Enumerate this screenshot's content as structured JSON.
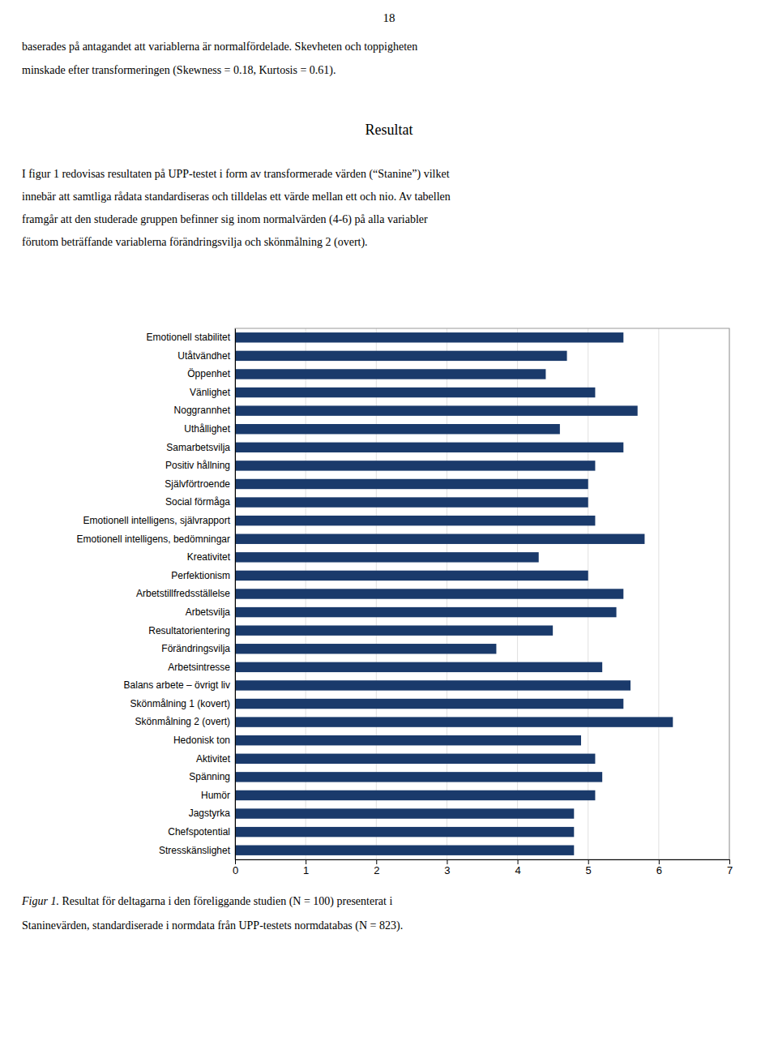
{
  "page_number": "18",
  "top_text": [
    "baserades på antagandet att variablerna är normalfördelade. Skevheten och toppigheten",
    "minskade efter transformeringen (Skewness = 0.18, Kurtosis = 0.61)."
  ],
  "section_heading": "Resultat",
  "body_text": [
    "I figur 1 redovisas resultaten på UPP-testet i form av transformerade värden (“Stanine”) vilket",
    "innebär att samtliga rådata standardiseras och tilldelas ett värde mellan ett och nio. Av tabellen",
    "framgår att den studerade gruppen befinner sig inom normalvärden (4-6) på alla variabler",
    "förutom beträffande variablerna förändringsvilja och skönmålning 2 (overt)."
  ],
  "caption": {
    "italic": "Figur 1.",
    "normal": " Resultat för deltagarna i den föreliggande studien (N = 100) presenterat i",
    "line2": "Staninevärden, standardiserade i normdata från UPP-testets normdatabas (N = 823)."
  },
  "chart_data": {
    "type": "bar",
    "orientation": "horizontal",
    "categories": [
      "Emotionell stabilitet",
      "Utåtvändhet",
      "Öppenhet",
      "Vänlighet",
      "Noggrannhet",
      "Uthållighet",
      "Samarbetsvilja",
      "Positiv hållning",
      "Självförtroende",
      "Social förmåga",
      "Emotionell intelligens, självrapport",
      "Emotionell intelligens, bedömningar",
      "Kreativitet",
      "Perfektionism",
      "Arbetstillfredsställelse",
      "Arbetsvilja",
      "Resultatorientering",
      "Förändringsvilja",
      "Arbetsintresse",
      "Balans arbete – övrigt liv",
      "Skönmålning 1 (kovert)",
      "Skönmålning 2 (overt)",
      "Hedonisk ton",
      "Aktivitet",
      "Spänning",
      "Humör",
      "Jagstyrka",
      "Chefspotential",
      "Stresskänslighet"
    ],
    "values": [
      5.5,
      4.7,
      4.4,
      5.1,
      5.7,
      4.6,
      5.5,
      5.1,
      5.0,
      5.0,
      5.1,
      5.8,
      4.3,
      5.0,
      5.5,
      5.4,
      4.5,
      3.7,
      5.2,
      5.6,
      5.5,
      6.2,
      4.9,
      5.1,
      5.2,
      5.1,
      4.8,
      4.8,
      4.8
    ],
    "color": "#1a3a6b",
    "xlim": [
      0,
      7
    ],
    "xticks": [
      0,
      1,
      2,
      3,
      4,
      5,
      6,
      7
    ],
    "grid": true
  }
}
